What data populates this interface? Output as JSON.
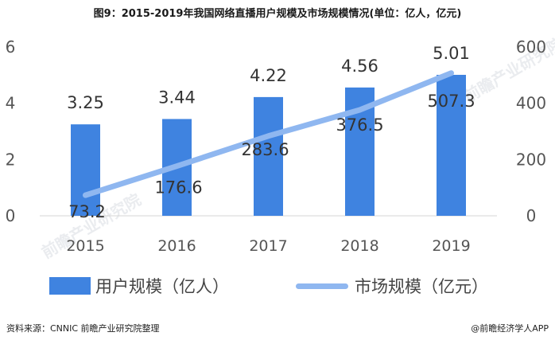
{
  "title": "图9：2015-2019年我国网络直播用户规模及市场规模情况(单位：亿人，亿元)",
  "footer": {
    "source": "资料来源：CNNIC 前瞻产业研究院整理",
    "brand": "@前瞻经济学人APP"
  },
  "watermarks": [
    "前瞻产业研究院",
    "前瞻产业研究院"
  ],
  "colors": {
    "bar": "#3f83e0",
    "line": "#8fb7f0",
    "axis_text": "#555555",
    "label": "#333333"
  },
  "chart_data": {
    "type": "bar",
    "categories": [
      "2015",
      "2016",
      "2017",
      "2018",
      "2019"
    ],
    "series": [
      {
        "name": "用户规模（亿人）",
        "type": "bar",
        "axis": "left",
        "values": [
          3.25,
          3.44,
          4.22,
          4.56,
          5.01
        ]
      },
      {
        "name": "市场规模（亿元）",
        "type": "line",
        "axis": "right",
        "values": [
          73.2,
          176.6,
          283.6,
          376.5,
          507.3
        ]
      }
    ],
    "ylim_left": [
      0,
      6
    ],
    "yticks_left": [
      0,
      2,
      4,
      6
    ],
    "ylim_right": [
      0,
      600
    ],
    "yticks_right": [
      0,
      200,
      400,
      600
    ],
    "grid": false,
    "legend": "bottom"
  }
}
